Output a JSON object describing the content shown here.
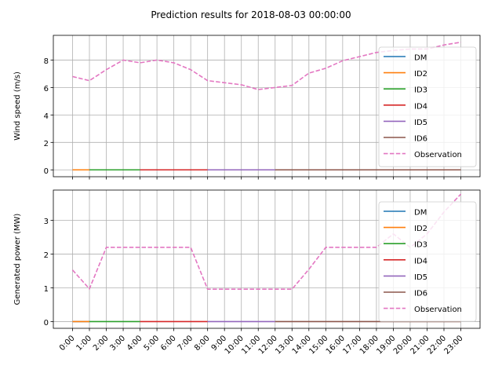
{
  "chart_data": {
    "type": "line",
    "title": "Prediction results for 2018-08-03 00:00:00",
    "x_categories": [
      "0:00",
      "1:00",
      "2:00",
      "3:00",
      "4:00",
      "5:00",
      "6:00",
      "7:00",
      "8:00",
      "9:00",
      "10:00",
      "11:00",
      "12:00",
      "13:00",
      "14:00",
      "15:00",
      "16:00",
      "17:00",
      "18:00",
      "19:00",
      "20:00",
      "21:00",
      "22:00",
      "23:00"
    ],
    "grid": true,
    "legend_placement": "upper right",
    "colors": {
      "DM": "#1f77b4",
      "ID2": "#ff7f0e",
      "ID3": "#2ca02c",
      "ID4": "#d62728",
      "ID5": "#9467bd",
      "ID6": "#8c564b",
      "Observation": "#e377c2"
    },
    "panels": [
      {
        "ylabel": "Wind speed (m/s)",
        "ylim": [
          -0.5,
          9.8
        ],
        "yticks": [
          0,
          2,
          4,
          6,
          8
        ],
        "series": [
          {
            "name": "DM",
            "segment": [
              0,
              1
            ],
            "value": 0
          },
          {
            "name": "ID2",
            "segment": [
              0,
              1
            ],
            "value": 0
          },
          {
            "name": "ID3",
            "segment": [
              1,
              4
            ],
            "value": 0
          },
          {
            "name": "ID4",
            "segment": [
              4,
              8
            ],
            "value": 0
          },
          {
            "name": "ID5",
            "segment": [
              8,
              12
            ],
            "value": 0
          },
          {
            "name": "ID6",
            "segment": [
              12,
              23
            ],
            "value": 0
          },
          {
            "name": "Observation",
            "values": [
              6.8,
              6.5,
              7.3,
              8.0,
              7.8,
              8.0,
              7.8,
              7.3,
              6.5,
              6.35,
              6.2,
              5.85,
              6.0,
              6.15,
              7.05,
              7.4,
              7.95,
              8.25,
              8.55,
              8.7,
              8.8,
              8.8,
              9.1,
              9.3
            ]
          }
        ]
      },
      {
        "ylabel": "Generated power (MW)",
        "ylim": [
          -0.2,
          3.9
        ],
        "yticks": [
          0,
          1,
          2,
          3
        ],
        "series": [
          {
            "name": "DM",
            "segment": [
              0,
              1
            ],
            "value": 0
          },
          {
            "name": "ID2",
            "segment": [
              0,
              1
            ],
            "value": 0
          },
          {
            "name": "ID3",
            "segment": [
              1,
              4
            ],
            "value": 0
          },
          {
            "name": "ID4",
            "segment": [
              4,
              8
            ],
            "value": 0
          },
          {
            "name": "ID5",
            "segment": [
              8,
              12
            ],
            "value": 0
          },
          {
            "name": "ID6",
            "segment": [
              12,
              23
            ],
            "value": 0
          },
          {
            "name": "Observation",
            "values": [
              1.53,
              0.97,
              2.2,
              2.2,
              2.2,
              2.2,
              2.2,
              2.2,
              0.96,
              0.96,
              0.96,
              0.96,
              0.96,
              0.96,
              1.55,
              2.2,
              2.2,
              2.2,
              2.2,
              2.6,
              2.2,
              2.6,
              3.25,
              3.78
            ]
          }
        ]
      }
    ]
  }
}
